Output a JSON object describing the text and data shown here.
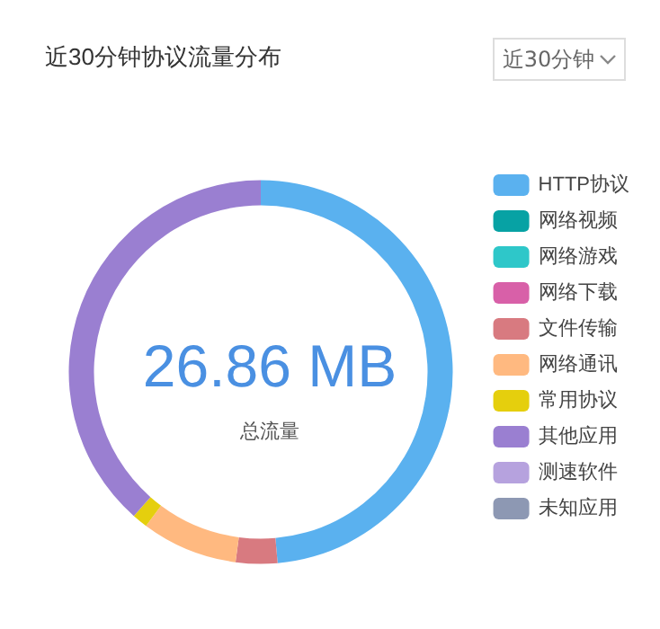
{
  "chart_data": {
    "type": "donut",
    "title": "近30分钟协议流量分布",
    "categories": [
      "HTTP协议",
      "网络视频",
      "网络游戏",
      "网络下载",
      "文件传输",
      "网络通讯",
      "常用协议",
      "其他应用",
      "测速软件",
      "未知应用"
    ],
    "values": [
      48.6,
      0,
      0,
      0,
      3.5,
      8.1,
      1.3,
      38.5,
      0,
      0
    ],
    "colors": [
      "#5ab1ef",
      "#07a2a4",
      "#2ec7c9",
      "#d860a8",
      "#d87a80",
      "#ffb980",
      "#e5cf0d",
      "#9a7fd1",
      "#b6a2de",
      "#8d98b3"
    ],
    "legend": "right",
    "annotations": [
      "近30分钟",
      "26.86 MB",
      "总流量"
    ]
  }
}
